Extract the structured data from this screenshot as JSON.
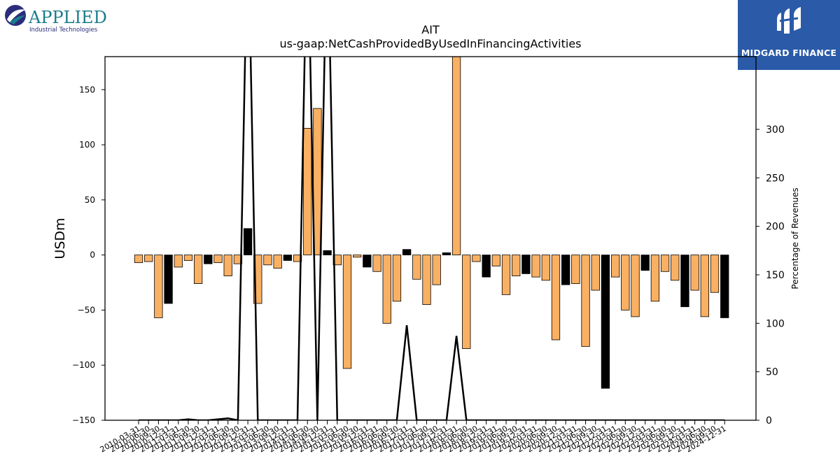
{
  "brand": {
    "company_name": "APPLIED",
    "company_tagline": "Industrial Technologies",
    "publisher": "MIDGARD FINANCE",
    "colors": {
      "applied_teal": "#1b7d8c",
      "applied_navy": "#2b2d7c",
      "midgard_blue": "#2a5aa8"
    }
  },
  "chart_data": {
    "type": "bar",
    "title": "AIT",
    "subtitle": "us-gaap:NetCashProvidedByUsedInFinancingActivities",
    "ylabel": "USDm",
    "y2label": "Percentage of Revenues",
    "ylim": [
      -150,
      180
    ],
    "y2lim": [
      0,
      375
    ],
    "yticks": [
      -150,
      -100,
      -50,
      0,
      50,
      100,
      150
    ],
    "y2ticks": [
      0,
      50,
      100,
      150,
      200,
      250,
      300
    ],
    "grid": false,
    "legend": "none",
    "bar_color_orange": "#f9b062",
    "bar_color_black": "#000000",
    "categories": [
      "2010-03-31",
      "2010-06-30",
      "2010-09-30",
      "2010-12-31",
      "2011-03-31",
      "2011-06-30",
      "2011-09-30",
      "2011-12-31",
      "2012-03-31",
      "2012-06-30",
      "2012-09-30",
      "2012-12-31",
      "2013-03-31",
      "2013-06-30",
      "2013-09-30",
      "2013-12-31",
      "2014-03-31",
      "2014-06-30",
      "2014-09-30",
      "2014-12-31",
      "2015-03-31",
      "2015-06-30",
      "2015-09-30",
      "2015-12-31",
      "2016-03-31",
      "2016-06-30",
      "2016-09-30",
      "2016-12-31",
      "2017-03-31",
      "2017-06-30",
      "2017-09-30",
      "2017-12-31",
      "2018-03-31",
      "2018-06-30",
      "2018-09-30",
      "2018-12-31",
      "2019-03-31",
      "2019-06-30",
      "2019-09-30",
      "2019-12-31",
      "2020-03-31",
      "2020-06-30",
      "2020-09-30",
      "2020-12-31",
      "2021-03-31",
      "2021-06-30",
      "2021-09-30",
      "2021-12-31",
      "2022-03-31",
      "2022-06-30",
      "2022-09-30",
      "2022-12-31",
      "2023-03-31",
      "2023-06-30",
      "2023-09-30",
      "2023-12-31",
      "2024-03-31",
      "2024-06-30",
      "2024-09-30",
      "2024-12-31"
    ],
    "series": [
      {
        "type": "bar",
        "values": [
          -7,
          -6,
          -57,
          -44,
          -11,
          -5,
          -26,
          -8,
          -7,
          -19,
          -8,
          24,
          -44,
          -9,
          -12,
          -5,
          -6,
          115,
          133,
          4,
          -9,
          -103,
          -2,
          -11,
          -15,
          -62,
          -42,
          5,
          -22,
          -45,
          -27,
          2,
          180,
          -85,
          -6,
          -20,
          -10,
          -36,
          -19,
          -17,
          -20,
          -23,
          -77,
          -27,
          -26,
          -83,
          -32,
          -121,
          -20,
          -50,
          -56,
          -14,
          -42,
          -15,
          -23,
          -47,
          -32,
          -56,
          -34,
          -57
        ],
        "colors": [
          "orange",
          "orange",
          "orange",
          "black",
          "orange",
          "orange",
          "orange",
          "black",
          "orange",
          "orange",
          "orange",
          "black",
          "orange",
          "orange",
          "orange",
          "black",
          "orange",
          "orange",
          "orange",
          "black",
          "orange",
          "orange",
          "orange",
          "black",
          "orange",
          "orange",
          "orange",
          "black",
          "orange",
          "orange",
          "orange",
          "black",
          "orange",
          "orange",
          "orange",
          "black",
          "orange",
          "orange",
          "orange",
          "black",
          "orange",
          "orange",
          "orange",
          "black",
          "orange",
          "orange",
          "orange",
          "black",
          "orange",
          "orange",
          "orange",
          "black",
          "orange",
          "orange",
          "orange",
          "black",
          "orange",
          "orange",
          "orange",
          "black"
        ]
      },
      {
        "type": "line",
        "axis": "right",
        "color": "#000000",
        "values": [
          0,
          0,
          0,
          0,
          0,
          1,
          0,
          0,
          1,
          2,
          0,
          520,
          0,
          0,
          0,
          0,
          0,
          520,
          0,
          520,
          0,
          0,
          0,
          0,
          0,
          0,
          0,
          98,
          0,
          0,
          0,
          0,
          87,
          0,
          0,
          0,
          0,
          0,
          0,
          0,
          0,
          0,
          0,
          0,
          0,
          0,
          0,
          0,
          0,
          0,
          0,
          0,
          0,
          0,
          0,
          0,
          0,
          0,
          0,
          0
        ]
      }
    ]
  }
}
